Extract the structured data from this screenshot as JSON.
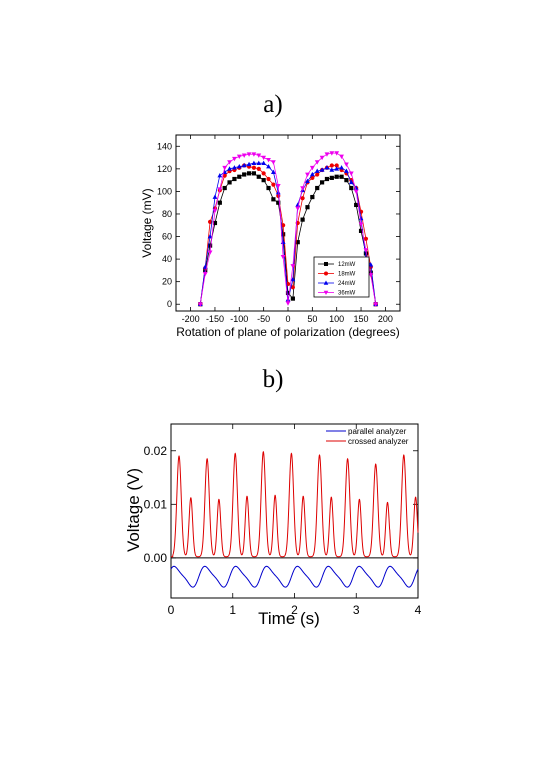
{
  "labels": {
    "panel_a": "a)",
    "panel_b": "b)"
  },
  "chart_data": [
    {
      "type": "line",
      "xlabel": "Rotation of plane of polarization (degrees)",
      "ylabel": "Voltage (mV)",
      "xlim": [
        -230,
        230
      ],
      "ylim": [
        -6,
        150
      ],
      "xticks": [
        -200,
        -150,
        -100,
        -50,
        0,
        50,
        100,
        150,
        200
      ],
      "yticks": [
        0,
        20,
        40,
        60,
        80,
        100,
        120,
        140
      ],
      "legend_position": "lower-right",
      "x": [
        -180,
        -170,
        -160,
        -150,
        -140,
        -130,
        -120,
        -110,
        -100,
        -90,
        -80,
        -70,
        -60,
        -50,
        -40,
        -30,
        -20,
        -10,
        0,
        10,
        20,
        30,
        40,
        50,
        60,
        70,
        80,
        90,
        100,
        110,
        120,
        130,
        140,
        150,
        160,
        170,
        180
      ],
      "series": [
        {
          "name": "12mW",
          "color": "#000000",
          "marker": "square",
          "values": [
            0,
            30,
            52,
            72,
            90,
            103,
            108,
            111,
            113,
            115,
            116,
            116,
            113,
            110,
            103,
            93,
            90,
            62,
            10,
            5,
            55,
            75,
            86,
            95,
            103,
            108,
            111,
            112,
            113,
            113,
            110,
            103,
            88,
            65,
            45,
            28,
            0
          ]
        },
        {
          "name": "18mW",
          "color": "#ee0000",
          "marker": "circle",
          "values": [
            0,
            32,
            73,
            85,
            101,
            114,
            118,
            119,
            121,
            123,
            122,
            121,
            120,
            116,
            111,
            106,
            96,
            70,
            18,
            15,
            72,
            94,
            108,
            112,
            115,
            119,
            121,
            123,
            123,
            119,
            116,
            110,
            103,
            82,
            58,
            33,
            0
          ]
        },
        {
          "name": "24mW",
          "color": "#0000ee",
          "marker": "triangle-up",
          "values": [
            0,
            33,
            60,
            95,
            114,
            117,
            120,
            121,
            122,
            123,
            124,
            125,
            125,
            125,
            122,
            117,
            99,
            55,
            4,
            22,
            88,
            101,
            109,
            115,
            118,
            119,
            121,
            119,
            120,
            121,
            118,
            108,
            103,
            76,
            40,
            35,
            0
          ]
        },
        {
          "name": "36mW",
          "color": "#ee00ee",
          "marker": "triangle-down",
          "values": [
            0,
            27,
            46,
            83,
            102,
            121,
            126,
            129,
            131,
            132,
            133,
            133,
            132,
            130,
            128,
            126,
            105,
            42,
            1,
            34,
            85,
            103,
            115,
            121,
            126,
            130,
            133,
            134,
            134,
            131,
            124,
            116,
            100,
            71,
            48,
            26,
            0
          ]
        }
      ]
    },
    {
      "type": "line",
      "xlabel": "Time (s)",
      "ylabel": "Voltage (V)",
      "xlim": [
        0,
        4
      ],
      "ylim": [
        -0.0075,
        0.025
      ],
      "xticks": [
        0,
        1,
        2,
        3,
        4
      ],
      "yticks": [
        "0.00",
        "0.01",
        "0.02"
      ],
      "ytick_values": [
        0,
        0.01,
        0.02
      ],
      "legend_position": "top-right",
      "series": [
        {
          "name": "parallel analyzer",
          "color": "#0000cc",
          "period_s": 0.5,
          "mean": -0.0035,
          "amplitude": 0.0018,
          "harmonic2": 0.0004,
          "phase": 0.6,
          "samples": 400
        },
        {
          "name": "crossed analyzer",
          "color": "#dd0000",
          "period_s": 0.455,
          "peaks": [
            0.019,
            0.0185,
            0.0195,
            0.0198,
            0.0195,
            0.0192,
            0.0185,
            0.0175,
            0.0192
          ],
          "first_peak_s": 0.13,
          "secondary_fraction": 0.58,
          "baseline": 0.0002,
          "samples": 1600
        }
      ]
    }
  ]
}
